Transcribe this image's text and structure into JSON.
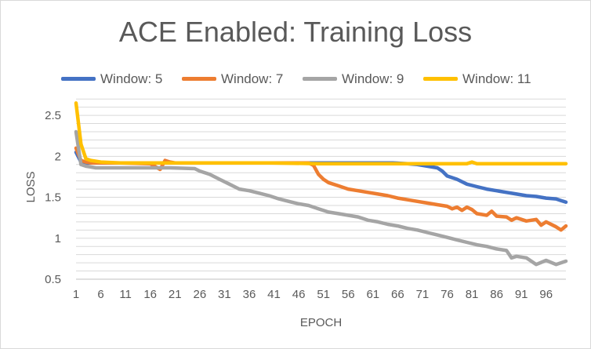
{
  "chart_data": {
    "type": "line",
    "title": "ACE Enabled: Training Loss",
    "xlabel": "EPOCH",
    "ylabel": "LOSS",
    "ylim": [
      0.5,
      2.75
    ],
    "xlim": [
      1,
      100
    ],
    "yticks": [
      "0.5",
      "1",
      "1.5",
      "2",
      "2.5"
    ],
    "xticks": [
      "1",
      "6",
      "11",
      "16",
      "21",
      "26",
      "31",
      "36",
      "41",
      "46",
      "51",
      "56",
      "61",
      "66",
      "71",
      "76",
      "81",
      "86",
      "91",
      "96"
    ],
    "grid": true,
    "legend_position": "top",
    "series": [
      {
        "name": "Window: 5",
        "color": "#4472c4",
        "x": [
          1,
          2,
          3,
          4,
          5,
          10,
          20,
          30,
          40,
          50,
          60,
          65,
          68,
          70,
          72,
          74,
          75,
          76,
          78,
          80,
          82,
          84,
          86,
          88,
          90,
          92,
          94,
          96,
          98,
          99,
          100
        ],
        "y": [
          2.05,
          1.93,
          1.92,
          1.92,
          1.92,
          1.92,
          1.92,
          1.92,
          1.92,
          1.92,
          1.92,
          1.92,
          1.91,
          1.9,
          1.88,
          1.86,
          1.82,
          1.76,
          1.72,
          1.66,
          1.63,
          1.6,
          1.58,
          1.56,
          1.54,
          1.52,
          1.51,
          1.49,
          1.48,
          1.46,
          1.44
        ]
      },
      {
        "name": "Window: 7",
        "color": "#ed7d31",
        "x": [
          1,
          2,
          3,
          4,
          5,
          10,
          16,
          18,
          19,
          20,
          21,
          30,
          40,
          48,
          49,
          50,
          51,
          52,
          54,
          56,
          58,
          60,
          62,
          64,
          66,
          68,
          70,
          72,
          74,
          76,
          77,
          78,
          79,
          80,
          81,
          82,
          84,
          85,
          86,
          88,
          89,
          90,
          92,
          94,
          95,
          96,
          98,
          99,
          100
        ],
        "y": [
          2.1,
          1.95,
          1.93,
          1.92,
          1.92,
          1.92,
          1.91,
          1.84,
          1.95,
          1.93,
          1.92,
          1.92,
          1.92,
          1.92,
          1.89,
          1.78,
          1.72,
          1.68,
          1.64,
          1.6,
          1.58,
          1.56,
          1.54,
          1.52,
          1.49,
          1.47,
          1.45,
          1.43,
          1.41,
          1.39,
          1.36,
          1.38,
          1.34,
          1.38,
          1.35,
          1.3,
          1.28,
          1.33,
          1.27,
          1.26,
          1.22,
          1.25,
          1.21,
          1.23,
          1.16,
          1.2,
          1.14,
          1.1,
          1.15
        ]
      },
      {
        "name": "Window: 9",
        "color": "#a5a5a5",
        "x": [
          1,
          2,
          3,
          4,
          5,
          8,
          10,
          15,
          20,
          25,
          26,
          28,
          30,
          32,
          34,
          36,
          38,
          40,
          42,
          44,
          46,
          48,
          50,
          52,
          54,
          56,
          58,
          60,
          62,
          64,
          66,
          68,
          70,
          72,
          74,
          76,
          78,
          80,
          82,
          84,
          86,
          88,
          89,
          90,
          92,
          94,
          96,
          98,
          100
        ],
        "y": [
          2.3,
          1.9,
          1.88,
          1.87,
          1.86,
          1.86,
          1.86,
          1.86,
          1.86,
          1.85,
          1.82,
          1.78,
          1.72,
          1.66,
          1.6,
          1.58,
          1.55,
          1.52,
          1.48,
          1.45,
          1.42,
          1.4,
          1.36,
          1.32,
          1.3,
          1.28,
          1.26,
          1.22,
          1.2,
          1.17,
          1.15,
          1.12,
          1.1,
          1.07,
          1.04,
          1.01,
          0.98,
          0.95,
          0.92,
          0.9,
          0.87,
          0.85,
          0.76,
          0.78,
          0.76,
          0.68,
          0.73,
          0.68,
          0.72
        ]
      },
      {
        "name": "Window: 11",
        "color": "#ffc000",
        "x": [
          1,
          2,
          3,
          4,
          5,
          6,
          10,
          20,
          30,
          40,
          50,
          60,
          70,
          80,
          81,
          82,
          90,
          100
        ],
        "y": [
          2.65,
          2.15,
          1.97,
          1.95,
          1.94,
          1.93,
          1.92,
          1.92,
          1.92,
          1.92,
          1.91,
          1.91,
          1.91,
          1.91,
          1.93,
          1.91,
          1.91,
          1.91
        ]
      }
    ]
  }
}
